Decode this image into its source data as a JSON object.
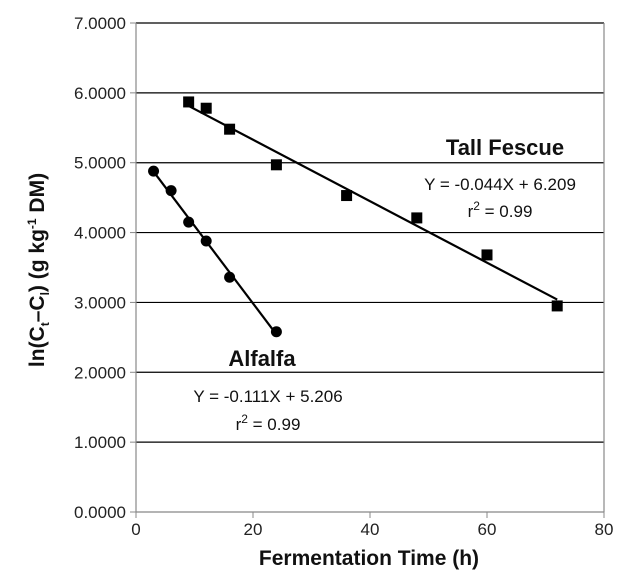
{
  "chart_data": {
    "type": "scatter",
    "xlabel": "Fermentation Time (h)",
    "ylabel": {
      "base": "ln(C",
      "sub_t": "t",
      "dash": "–C",
      "sub_l": "l",
      "unit": ") (g kg",
      "sup": "-1",
      "tail": " DM)"
    },
    "xlim": [
      0,
      80
    ],
    "ylim": [
      0,
      7
    ],
    "x_ticks": [
      "0",
      "20",
      "40",
      "60",
      "80"
    ],
    "y_ticks": [
      "0.0000",
      "1.0000",
      "2.0000",
      "3.0000",
      "4.0000",
      "5.0000",
      "6.0000",
      "7.0000"
    ],
    "grid": "horizontal",
    "series": [
      {
        "name": "Tall Fescue",
        "marker": "square",
        "x": [
          9,
          12,
          16,
          24,
          36,
          48,
          60,
          72
        ],
        "y": [
          5.87,
          5.78,
          5.48,
          4.97,
          4.53,
          4.21,
          3.68,
          2.95
        ],
        "trend_x": [
          9,
          72
        ],
        "equation": "Y = -0.044X + 6.209",
        "r2_prefix": "r",
        "r2_sup": "2",
        "r2_value": " = 0.99"
      },
      {
        "name": "Alfalfa",
        "marker": "circle",
        "x": [
          3,
          6,
          9,
          12,
          16,
          24
        ],
        "y": [
          4.88,
          4.6,
          4.15,
          3.88,
          3.36,
          2.58
        ],
        "trend_x": [
          3,
          24
        ],
        "equation": "Y = -0.111X + 5.206",
        "r2_prefix": "r",
        "r2_sup": "2",
        "r2_value": " = 0.99"
      }
    ],
    "colors": {
      "marker": "#000000",
      "line": "#000000",
      "grid": "#000000",
      "axis": "#888888"
    }
  }
}
